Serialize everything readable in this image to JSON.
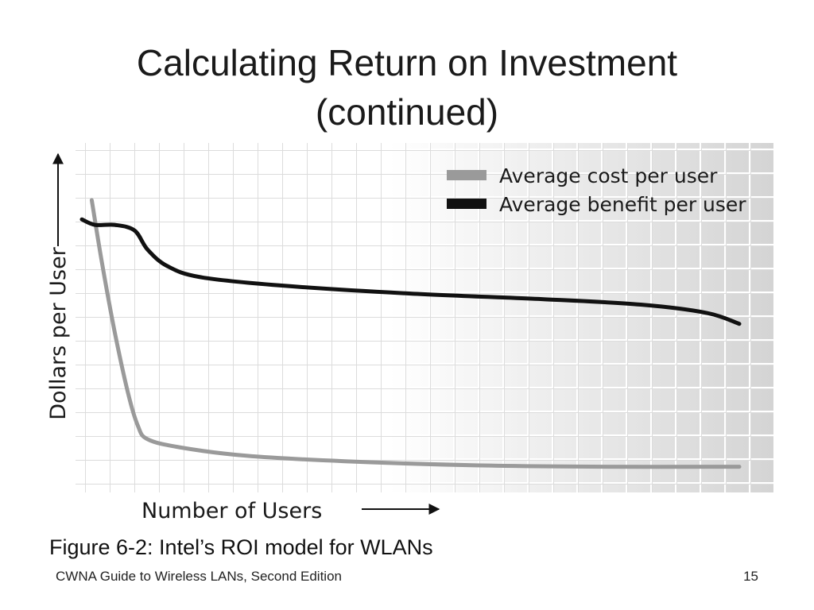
{
  "slide": {
    "title_line1": "Calculating Return on Investment",
    "title_line2": "(continued)",
    "caption": "Figure 6-2: Intel’s ROI model for WLANs",
    "footer": "CWNA Guide to Wireless LANs, Second Edition",
    "page_number": "15"
  },
  "colors": {
    "cost_series": "#9a9a9a",
    "benefit_series": "#111111",
    "grid": "#ffffff"
  },
  "chart_data": {
    "type": "line",
    "xlabel": "Number of Users",
    "ylabel": "Dollars per User",
    "grid": true,
    "legend_placement": "top-right",
    "xlim": [
      0,
      100
    ],
    "ylim": [
      0,
      100
    ],
    "series": [
      {
        "name": "Average cost per user",
        "color": "#9a9a9a",
        "points": [
          [
            1.5,
            100
          ],
          [
            3,
            78
          ],
          [
            5,
            52
          ],
          [
            7,
            30
          ],
          [
            8.5,
            18
          ],
          [
            10,
            13
          ],
          [
            15,
            10
          ],
          [
            25,
            7
          ],
          [
            40,
            5
          ],
          [
            60,
            3.5
          ],
          [
            80,
            3
          ],
          [
            100,
            3
          ]
        ]
      },
      {
        "name": "Average benefit per user",
        "color": "#111111",
        "points": [
          [
            0,
            93
          ],
          [
            2,
            91
          ],
          [
            5,
            91
          ],
          [
            8,
            89
          ],
          [
            10,
            82
          ],
          [
            13,
            76
          ],
          [
            18,
            72
          ],
          [
            30,
            69
          ],
          [
            50,
            66
          ],
          [
            70,
            64
          ],
          [
            85,
            62
          ],
          [
            95,
            59
          ],
          [
            100,
            55
          ]
        ]
      }
    ]
  }
}
